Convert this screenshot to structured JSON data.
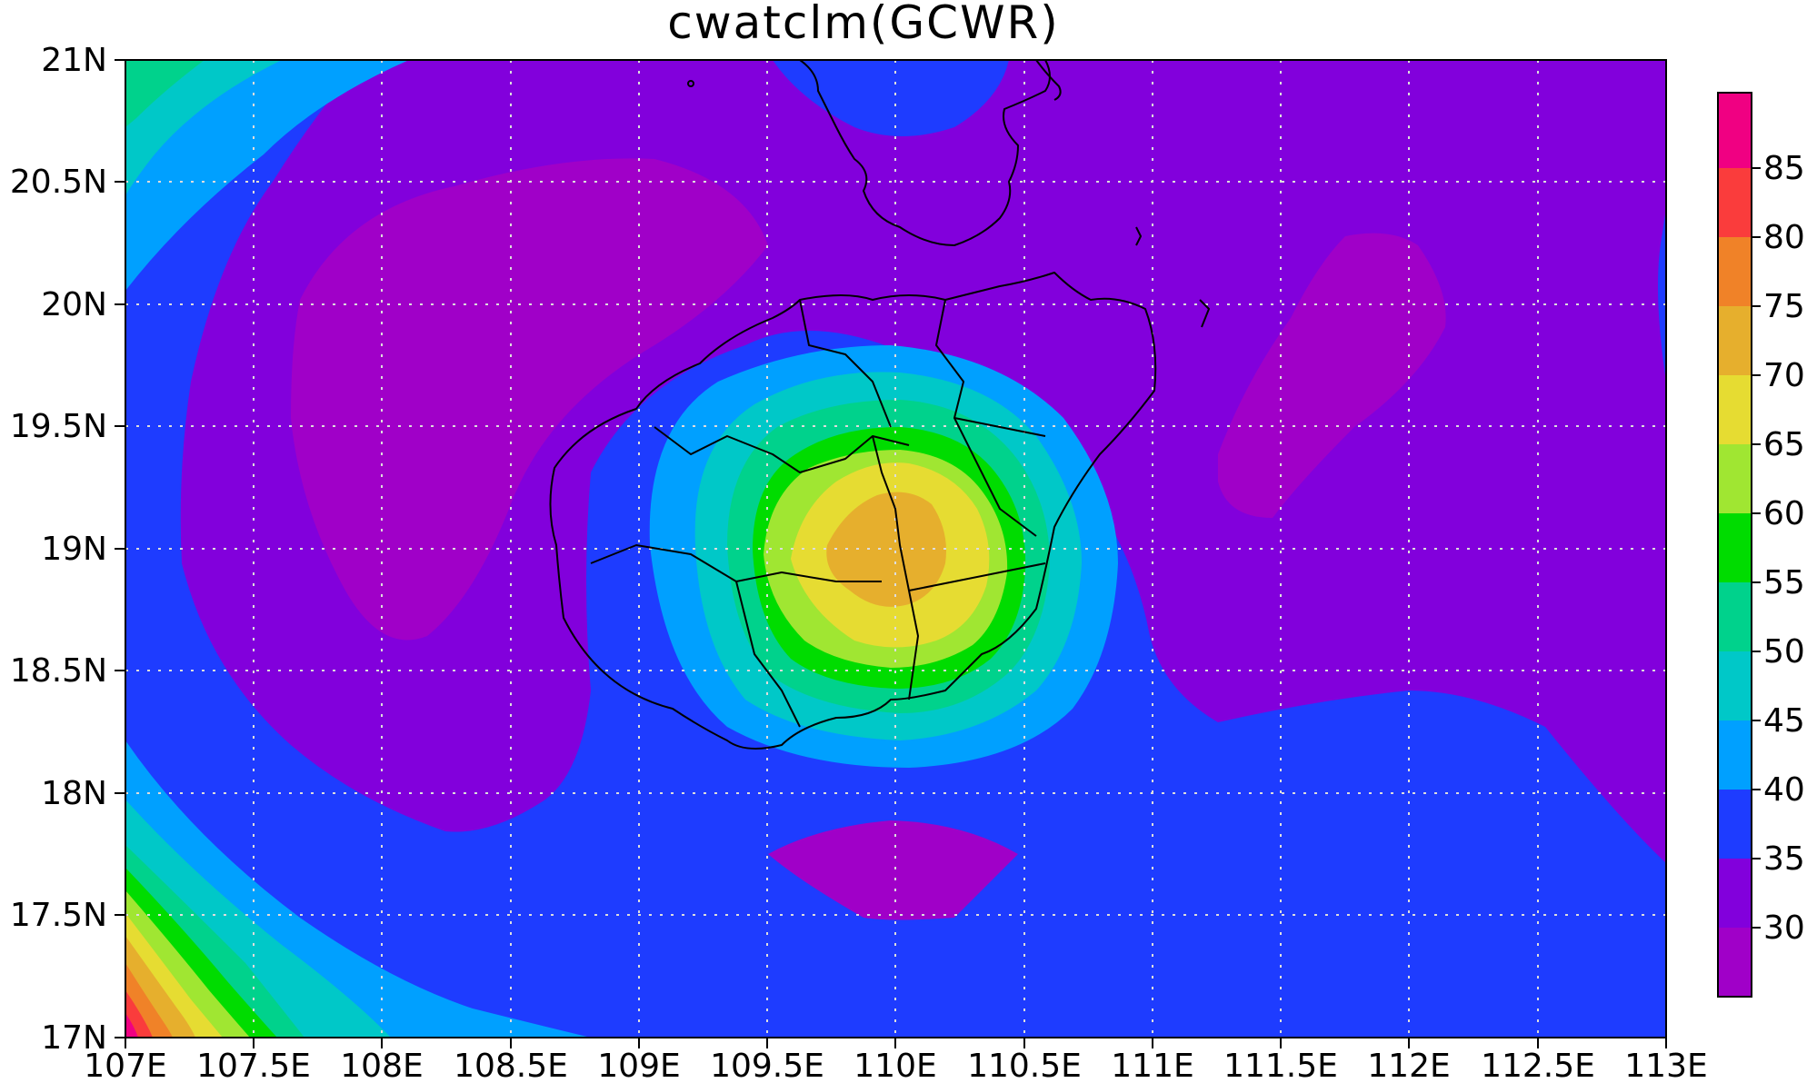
{
  "title": "cwatclm(GCWR)",
  "x_axis": {
    "ticks": [
      "107E",
      "107.5E",
      "108E",
      "108.5E",
      "109E",
      "109.5E",
      "110E",
      "110.5E",
      "111E",
      "111.5E",
      "112E",
      "112.5E",
      "113E"
    ]
  },
  "y_axis": {
    "ticks": [
      "21N",
      "20.5N",
      "20N",
      "19.5N",
      "19N",
      "18.5N",
      "18N",
      "17.5N",
      "17N"
    ]
  },
  "colorbar": {
    "labels": [
      "30",
      "35",
      "40",
      "45",
      "50",
      "55",
      "60",
      "65",
      "70",
      "75",
      "80",
      "85"
    ],
    "colors": [
      "#a000c8",
      "#8200dc",
      "#1e3cff",
      "#00a0ff",
      "#00c8c8",
      "#00d28c",
      "#00dc00",
      "#a0e632",
      "#e6dc32",
      "#e6af2d",
      "#f08228",
      "#fa3c3c",
      "#f00082"
    ]
  },
  "palette": {
    "c1": "#a000c8",
    "c2": "#8200dc",
    "c3": "#1e3cff",
    "c4": "#00a0ff",
    "c5": "#00c8c8",
    "c6": "#00d28c",
    "c7": "#00dc00",
    "c8": "#a0e632",
    "c9": "#e6dc32",
    "c10": "#e6af2d",
    "c11": "#f08228",
    "c12": "#fa3c3c",
    "c13": "#f00082"
  },
  "grid": {
    "visible": true,
    "style": "dotted",
    "color": "#dddddd"
  },
  "map": {
    "lon_range": [
      107,
      113
    ],
    "lat_range": [
      17,
      21
    ],
    "field_center": [
      110.0,
      19.0
    ]
  }
}
